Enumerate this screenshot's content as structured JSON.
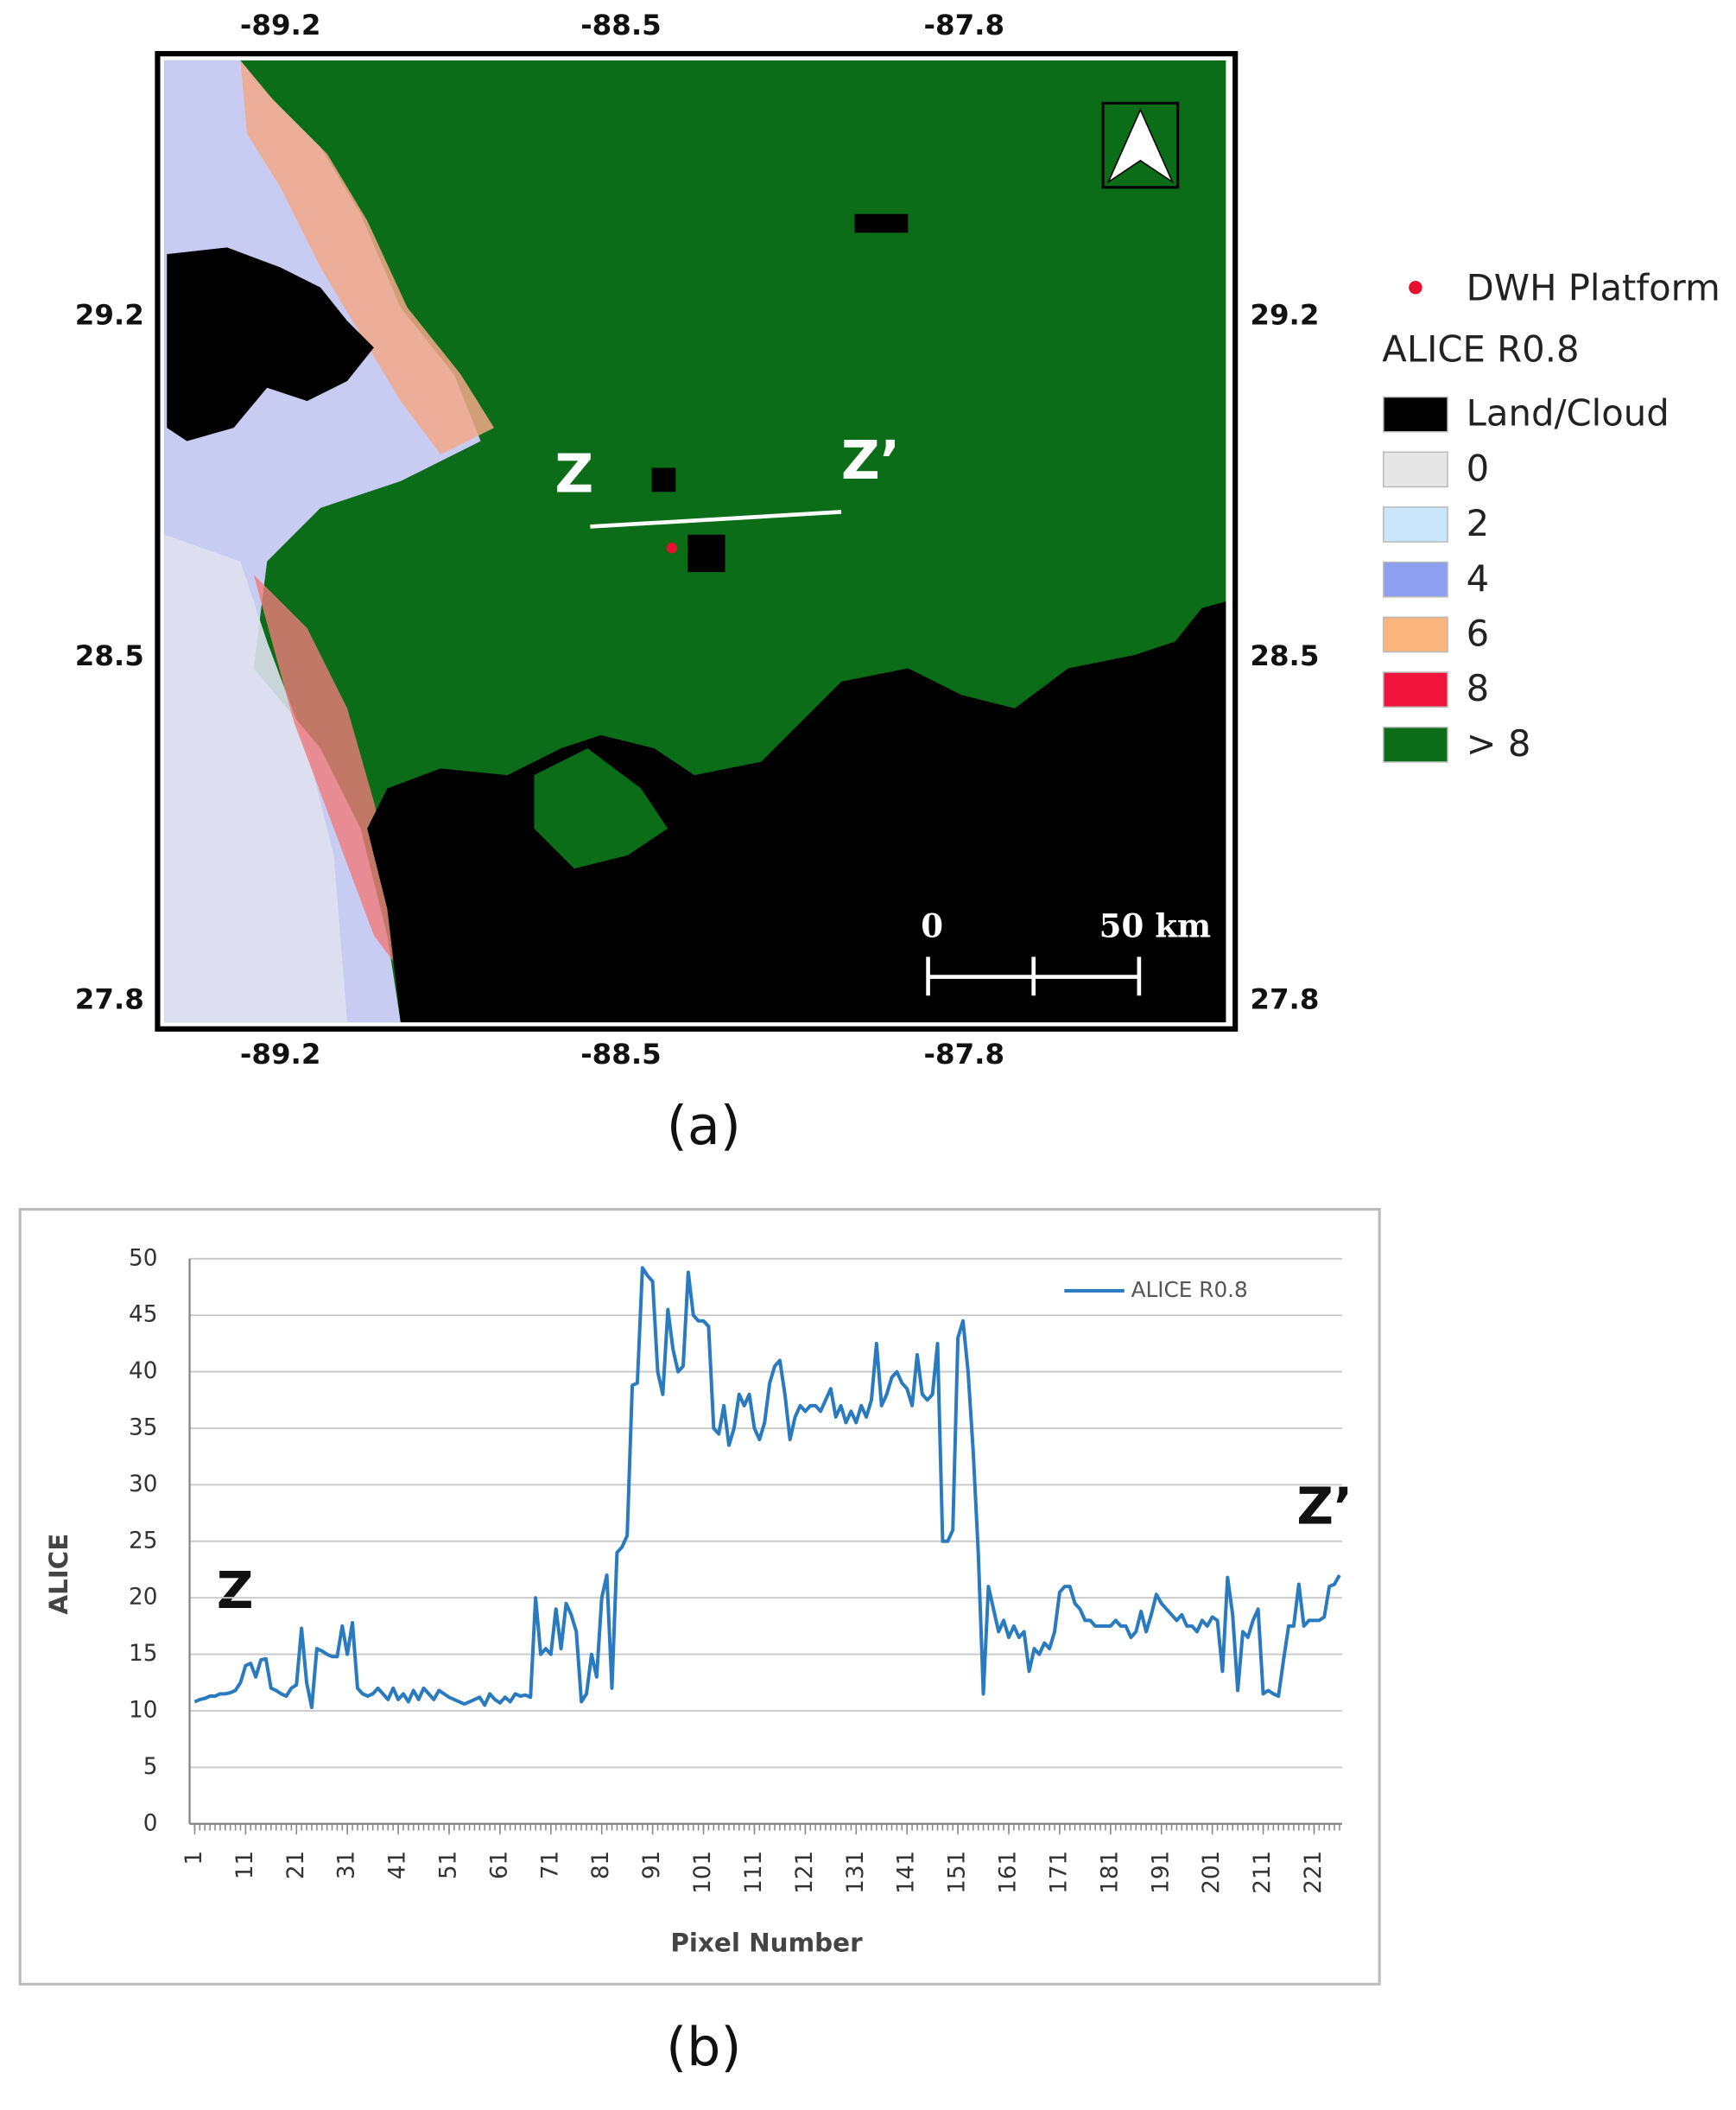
{
  "map": {
    "caption": "(a)",
    "lon_ticks": [
      -89.2,
      -88.5,
      -87.8
    ],
    "lat_ticks": [
      29.2,
      28.5,
      27.8
    ],
    "transect_start": "Z",
    "transect_end": "Z’",
    "scale_start": "0",
    "scale_end": "50 km",
    "platform": {
      "label": "DWH Platform",
      "color": "#e8102e"
    },
    "legend": {
      "title": "ALICE R0.8",
      "items": [
        {
          "label": "Land/Cloud",
          "color": "#000000"
        },
        {
          "label": "0",
          "color": "#e6e6e6"
        },
        {
          "label": "2",
          "color": "#c9e6fa"
        },
        {
          "label": "4",
          "color": "#8c9ff0"
        },
        {
          "label": "6",
          "color": "#fbb47c"
        },
        {
          "label": "8",
          "color": "#f0143c"
        },
        {
          "label": "> 8",
          "color": "#0b6d17"
        }
      ]
    }
  },
  "chart_data": {
    "type": "line",
    "caption": "(b)",
    "xlabel": "Pixel Number",
    "ylabel": "ALICE",
    "annotations": [
      "Z",
      "Z’"
    ],
    "legend": "upper right",
    "grid": true,
    "xlim": [
      0,
      226.5
    ],
    "ylim": [
      0,
      50
    ],
    "xticks": [
      1,
      11,
      21,
      31,
      41,
      51,
      61,
      71,
      81,
      91,
      101,
      111,
      121,
      131,
      141,
      151,
      161,
      171,
      181,
      191,
      201,
      211,
      221
    ],
    "yticks": [
      0,
      5,
      10,
      15,
      20,
      25,
      30,
      35,
      40,
      45,
      50
    ],
    "x": [
      1,
      2,
      3,
      4,
      5,
      6,
      7,
      8,
      9,
      10,
      11,
      12,
      13,
      14,
      15,
      16,
      17,
      18,
      19,
      20,
      21,
      22,
      23,
      24,
      25,
      26,
      27,
      28,
      29,
      30,
      31,
      32,
      33,
      34,
      35,
      36,
      37,
      38,
      39,
      40,
      41,
      42,
      43,
      44,
      45,
      46,
      47,
      48,
      49,
      50,
      51,
      52,
      53,
      54,
      55,
      56,
      57,
      58,
      59,
      60,
      61,
      62,
      63,
      64,
      65,
      66,
      67,
      68,
      69,
      70,
      71,
      72,
      73,
      74,
      75,
      76,
      77,
      78,
      79,
      80,
      81,
      82,
      83,
      84,
      85,
      86,
      87,
      88,
      89,
      90,
      91,
      92,
      93,
      94,
      95,
      96,
      97,
      98,
      99,
      100,
      101,
      102,
      103,
      104,
      105,
      106,
      107,
      108,
      109,
      110,
      111,
      112,
      113,
      114,
      115,
      116,
      117,
      118,
      119,
      120,
      121,
      122,
      123,
      124,
      125,
      126,
      127,
      128,
      129,
      130,
      131,
      132,
      133,
      134,
      135,
      136,
      137,
      138,
      139,
      140,
      141,
      142,
      143,
      144,
      145,
      146,
      147,
      148,
      149,
      150,
      151,
      152,
      153,
      154,
      155,
      156,
      157,
      158,
      159,
      160,
      161,
      162,
      163,
      164,
      165,
      166,
      167,
      168,
      169,
      170,
      171,
      172,
      173,
      174,
      175,
      176,
      177,
      178,
      179,
      180,
      181,
      182,
      183,
      184,
      185,
      186,
      187,
      188,
      189,
      190,
      191,
      192,
      193,
      194,
      195,
      196,
      197,
      198,
      199,
      200,
      201,
      202,
      203,
      204,
      205,
      206,
      207,
      208,
      209,
      210,
      211,
      212,
      213,
      214,
      215,
      216,
      217,
      218,
      219,
      220,
      221,
      222,
      223,
      224,
      225,
      226
    ],
    "series": [
      {
        "name": "ALICE R0.8",
        "color": "#2a7ac0",
        "values": [
          10.8,
          11,
          11.1,
          11.3,
          11.3,
          11.5,
          11.5,
          11.6,
          11.8,
          12.5,
          14,
          14.2,
          13,
          14.5,
          14.6,
          12,
          11.8,
          11.5,
          11.3,
          12,
          12.3,
          17.3,
          12.5,
          10.3,
          15.5,
          15.3,
          15,
          14.8,
          14.8,
          17.5,
          15,
          17.8,
          12,
          11.5,
          11.3,
          11.5,
          12,
          11.5,
          11,
          12,
          11,
          11.5,
          10.8,
          11.8,
          11,
          12,
          11.5,
          11,
          11.8,
          11.5,
          11.2,
          11,
          10.8,
          10.6,
          10.8,
          11,
          11.2,
          10.5,
          11.5,
          11,
          10.7,
          11.2,
          10.8,
          11.5,
          11.3,
          11.4,
          11.2,
          20,
          15,
          15.5,
          15,
          19,
          15.5,
          19.5,
          18.5,
          17,
          10.8,
          11.5,
          15,
          13,
          20,
          22,
          12,
          24,
          24.5,
          25.5,
          38.8,
          39,
          49.2,
          48.5,
          48,
          40,
          38,
          45.5,
          42,
          40,
          40.5,
          48.8,
          45,
          44.5,
          44.5,
          44,
          35,
          34.5,
          37,
          33.5,
          35,
          38,
          37,
          38,
          35,
          34,
          35.5,
          39,
          40.5,
          41,
          38,
          34,
          36,
          37,
          36.5,
          37,
          37,
          36.5,
          37.5,
          38.5,
          36,
          37,
          35.5,
          36.5,
          35.5,
          37,
          36,
          37.5,
          42.5,
          37,
          38,
          39.5,
          40,
          39,
          38.5,
          37,
          41.5,
          38,
          37.5,
          38,
          42.5,
          25,
          25,
          26,
          43,
          44.5,
          40,
          33,
          24,
          11.5,
          21,
          19,
          17,
          18,
          16.5,
          17.5,
          16.5,
          17,
          13.5,
          15.5,
          15,
          16,
          15.5,
          17,
          20.5,
          21,
          21,
          19.5,
          19,
          18,
          18,
          17.5,
          17.5,
          17.5,
          17.5,
          18,
          17.5,
          17.5,
          16.5,
          17,
          18.8,
          17,
          18.5,
          20.3,
          19.5,
          19,
          18.5,
          18,
          18.5,
          17.5,
          17.5,
          17,
          18,
          17.5,
          18.3,
          18,
          13.5,
          21.8,
          18.5,
          11.8,
          17,
          16.5,
          18,
          19,
          11.5,
          11.8,
          11.5,
          11.3,
          14.5,
          17.5,
          17.5,
          21.2,
          17.5,
          18,
          18,
          18,
          18.3,
          21,
          21.2,
          22
        ]
      }
    ]
  }
}
